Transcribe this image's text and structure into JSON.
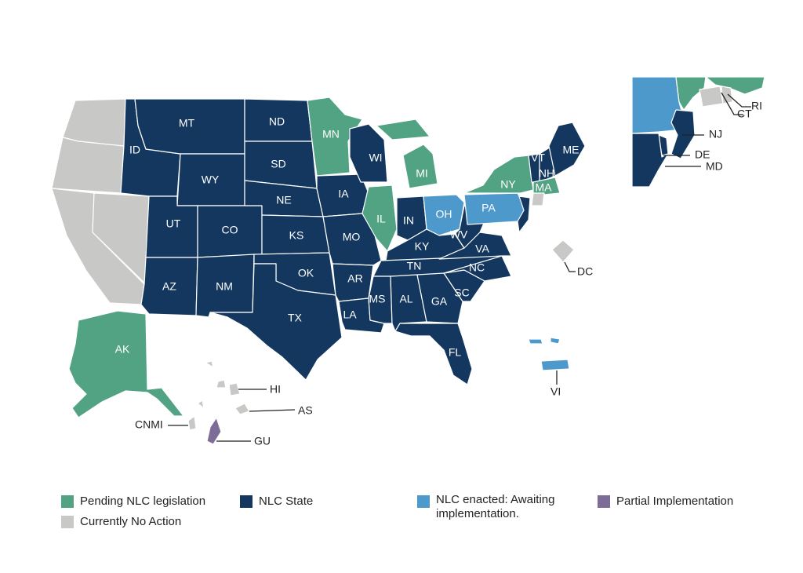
{
  "colors": {
    "pending": "#52a383",
    "nlc": "#14375f",
    "enacted": "#4d99cc",
    "partial": "#7d6b98",
    "none": "#c8c8c6"
  },
  "states": [
    {
      "code": "WA",
      "label": "",
      "status": "none"
    },
    {
      "code": "OR",
      "label": "",
      "status": "none"
    },
    {
      "code": "CA",
      "label": "",
      "status": "none"
    },
    {
      "code": "NV",
      "label": "",
      "status": "none"
    },
    {
      "code": "ID",
      "label": "ID",
      "status": "nlc"
    },
    {
      "code": "MT",
      "label": "MT",
      "status": "nlc"
    },
    {
      "code": "WY",
      "label": "WY",
      "status": "nlc"
    },
    {
      "code": "UT",
      "label": "UT",
      "status": "nlc"
    },
    {
      "code": "CO",
      "label": "CO",
      "status": "nlc"
    },
    {
      "code": "AZ",
      "label": "AZ",
      "status": "nlc"
    },
    {
      "code": "NM",
      "label": "NM",
      "status": "nlc"
    },
    {
      "code": "ND",
      "label": "ND",
      "status": "nlc"
    },
    {
      "code": "SD",
      "label": "SD",
      "status": "nlc"
    },
    {
      "code": "NE",
      "label": "NE",
      "status": "nlc"
    },
    {
      "code": "KS",
      "label": "KS",
      "status": "nlc"
    },
    {
      "code": "OK",
      "label": "OK",
      "status": "nlc"
    },
    {
      "code": "TX",
      "label": "TX",
      "status": "nlc"
    },
    {
      "code": "MN",
      "label": "MN",
      "status": "pending"
    },
    {
      "code": "IA",
      "label": "IA",
      "status": "nlc"
    },
    {
      "code": "MO",
      "label": "MO",
      "status": "nlc"
    },
    {
      "code": "AR",
      "label": "AR",
      "status": "nlc"
    },
    {
      "code": "LA",
      "label": "LA",
      "status": "nlc"
    },
    {
      "code": "WI",
      "label": "WI",
      "status": "nlc"
    },
    {
      "code": "IL",
      "label": "IL",
      "status": "pending"
    },
    {
      "code": "MI",
      "label": "MI",
      "status": "pending"
    },
    {
      "code": "IN",
      "label": "IN",
      "status": "nlc"
    },
    {
      "code": "OH",
      "label": "OH",
      "status": "enacted"
    },
    {
      "code": "KY",
      "label": "KY",
      "status": "nlc"
    },
    {
      "code": "TN",
      "label": "TN",
      "status": "nlc"
    },
    {
      "code": "MS",
      "label": "MS",
      "status": "nlc"
    },
    {
      "code": "AL",
      "label": "AL",
      "status": "nlc"
    },
    {
      "code": "GA",
      "label": "GA",
      "status": "nlc"
    },
    {
      "code": "FL",
      "label": "FL",
      "status": "nlc"
    },
    {
      "code": "SC",
      "label": "SC",
      "status": "nlc"
    },
    {
      "code": "NC",
      "label": "NC",
      "status": "nlc"
    },
    {
      "code": "VA",
      "label": "VA",
      "status": "nlc"
    },
    {
      "code": "WV",
      "label": "WV",
      "status": "nlc"
    },
    {
      "code": "PA",
      "label": "PA",
      "status": "enacted"
    },
    {
      "code": "NY",
      "label": "NY",
      "status": "pending"
    },
    {
      "code": "VT",
      "label": "VT",
      "status": "nlc"
    },
    {
      "code": "NH",
      "label": "NH",
      "status": "nlc"
    },
    {
      "code": "ME",
      "label": "ME",
      "status": "nlc"
    },
    {
      "code": "MA",
      "label": "MA",
      "status": "pending"
    },
    {
      "code": "CT",
      "label": "",
      "status": "none"
    },
    {
      "code": "NJ",
      "label": "",
      "status": "nlc"
    },
    {
      "code": "AK",
      "label": "AK",
      "status": "pending"
    },
    {
      "code": "HI",
      "label": "",
      "status": "none"
    },
    {
      "code": "DC",
      "label": "",
      "status": "none"
    },
    {
      "code": "VI",
      "label": "",
      "status": "enacted"
    },
    {
      "code": "PR",
      "label": "",
      "status": "enacted"
    },
    {
      "code": "AS",
      "label": "",
      "status": "none"
    },
    {
      "code": "GU",
      "label": "",
      "status": "partial"
    },
    {
      "code": "CNMI",
      "label": "",
      "status": "none"
    }
  ],
  "inset": [
    {
      "code": "PA",
      "status": "enacted"
    },
    {
      "code": "NY",
      "status": "pending"
    },
    {
      "code": "CT",
      "status": "none"
    },
    {
      "code": "RI",
      "status": "none"
    },
    {
      "code": "MA",
      "status": "pending"
    },
    {
      "code": "NJ",
      "status": "nlc"
    },
    {
      "code": "DE",
      "status": "nlc"
    },
    {
      "code": "MD",
      "status": "nlc"
    }
  ],
  "callouts": [
    {
      "id": "RI",
      "label": "RI"
    },
    {
      "id": "CT",
      "label": "CT"
    },
    {
      "id": "NJ",
      "label": "NJ"
    },
    {
      "id": "DE",
      "label": "DE"
    },
    {
      "id": "MD",
      "label": "MD"
    },
    {
      "id": "DC",
      "label": "DC"
    },
    {
      "id": "VI",
      "label": "VI"
    },
    {
      "id": "HI",
      "label": "HI"
    },
    {
      "id": "AS",
      "label": "AS"
    },
    {
      "id": "CNMI",
      "label": "CNMI"
    },
    {
      "id": "GU",
      "label": "GU"
    }
  ],
  "legend": {
    "pending": "Pending NLC legislation",
    "nlc": "NLC State",
    "enacted": "NLC enacted: Awaiting implementation.",
    "partial": "Partial Implementation",
    "none": "Currently No Action"
  }
}
